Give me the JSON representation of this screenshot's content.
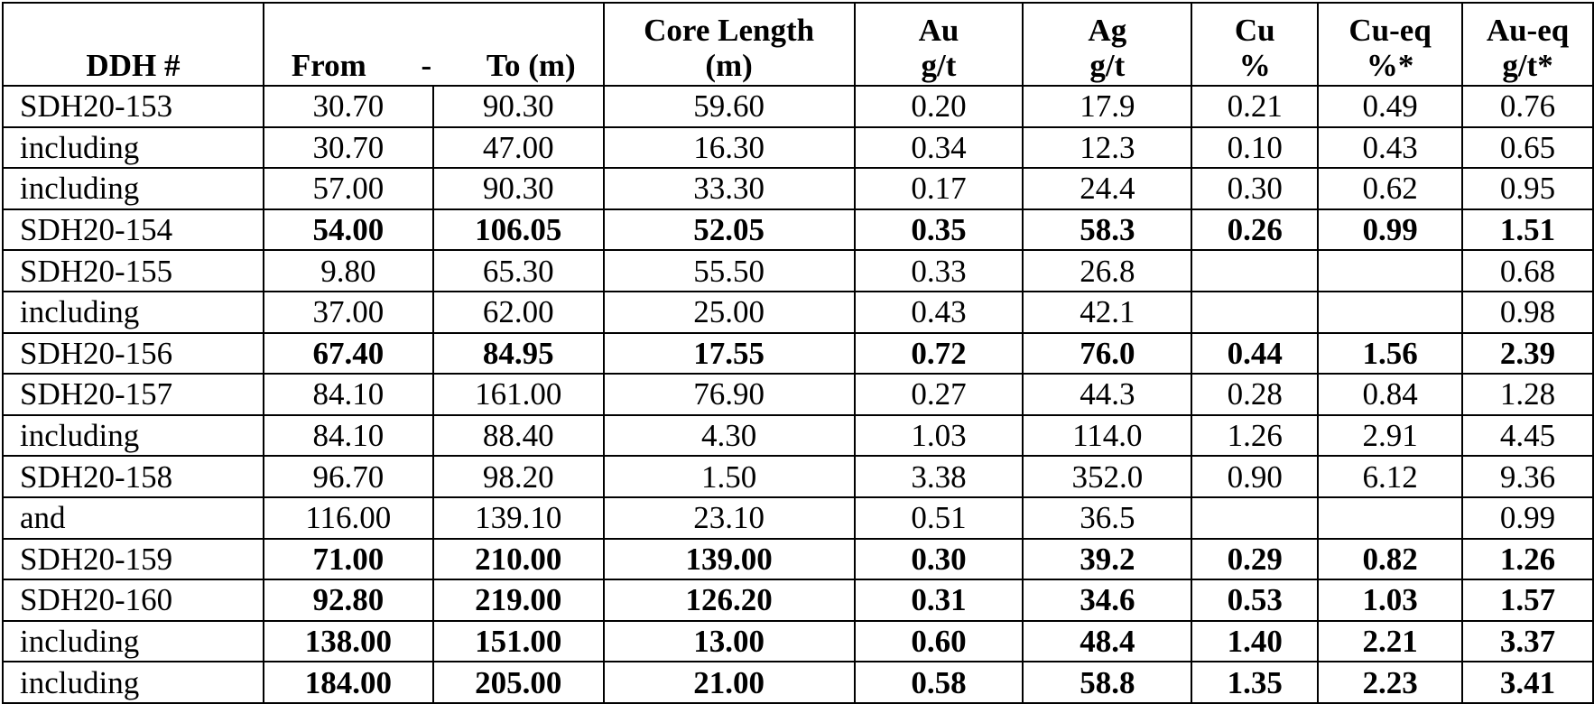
{
  "headers": {
    "ddh": "DDH #",
    "from": "From",
    "dash": "-",
    "to": "To (m)",
    "core_length_line1": "Core Length",
    "core_length_line2": "(m)",
    "au_line1": "Au",
    "au_line2": "g/t",
    "ag_line1": "Ag",
    "ag_line2": "g/t",
    "cu_line1": "Cu",
    "cu_line2": "%",
    "cueq_line1": "Cu-eq",
    "cueq_line2": "%*",
    "aueq_line1": "Au-eq",
    "aueq_line2": "g/t*"
  },
  "rows": [
    {
      "ddh": "SDH20-153",
      "from": "30.70",
      "to": "90.30",
      "core": "59.60",
      "au": "0.20",
      "ag": "17.9",
      "cu": "0.21",
      "cueq": "0.49",
      "aueq": "0.76",
      "bold": false
    },
    {
      "ddh": "including",
      "from": "30.70",
      "to": "47.00",
      "core": "16.30",
      "au": "0.34",
      "ag": "12.3",
      "cu": "0.10",
      "cueq": "0.43",
      "aueq": "0.65",
      "bold": false
    },
    {
      "ddh": "including",
      "from": "57.00",
      "to": "90.30",
      "core": "33.30",
      "au": "0.17",
      "ag": "24.4",
      "cu": "0.30",
      "cueq": "0.62",
      "aueq": "0.95",
      "bold": false
    },
    {
      "ddh": "SDH20-154",
      "from": "54.00",
      "to": "106.05",
      "core": "52.05",
      "au": "0.35",
      "ag": "58.3",
      "cu": "0.26",
      "cueq": "0.99",
      "aueq": "1.51",
      "bold": true
    },
    {
      "ddh": "SDH20-155",
      "from": "9.80",
      "to": "65.30",
      "core": "55.50",
      "au": "0.33",
      "ag": "26.8",
      "cu": "",
      "cueq": "",
      "aueq": "0.68",
      "bold": false
    },
    {
      "ddh": "including",
      "from": "37.00",
      "to": "62.00",
      "core": "25.00",
      "au": "0.43",
      "ag": "42.1",
      "cu": "",
      "cueq": "",
      "aueq": "0.98",
      "bold": false
    },
    {
      "ddh": "SDH20-156",
      "from": "67.40",
      "to": "84.95",
      "core": "17.55",
      "au": "0.72",
      "ag": "76.0",
      "cu": "0.44",
      "cueq": "1.56",
      "aueq": "2.39",
      "bold": true
    },
    {
      "ddh": "SDH20-157",
      "from": "84.10",
      "to": "161.00",
      "core": "76.90",
      "au": "0.27",
      "ag": "44.3",
      "cu": "0.28",
      "cueq": "0.84",
      "aueq": "1.28",
      "bold": false
    },
    {
      "ddh": "including",
      "from": "84.10",
      "to": "88.40",
      "core": "4.30",
      "au": "1.03",
      "ag": "114.0",
      "cu": "1.26",
      "cueq": "2.91",
      "aueq": "4.45",
      "bold": false
    },
    {
      "ddh": "SDH20-158",
      "from": "96.70",
      "to": "98.20",
      "core": "1.50",
      "au": "3.38",
      "ag": "352.0",
      "cu": "0.90",
      "cueq": "6.12",
      "aueq": "9.36",
      "bold": false
    },
    {
      "ddh": "and",
      "from": "116.00",
      "to": "139.10",
      "core": "23.10",
      "au": "0.51",
      "ag": "36.5",
      "cu": "",
      "cueq": "",
      "aueq": "0.99",
      "bold": false
    },
    {
      "ddh": "SDH20-159",
      "from": "71.00",
      "to": "210.00",
      "core": "139.00",
      "au": "0.30",
      "ag": "39.2",
      "cu": "0.29",
      "cueq": "0.82",
      "aueq": "1.26",
      "bold": true
    },
    {
      "ddh": "SDH20-160",
      "from": "92.80",
      "to": "219.00",
      "core": "126.20",
      "au": "0.31",
      "ag": "34.6",
      "cu": "0.53",
      "cueq": "1.03",
      "aueq": "1.57",
      "bold": true
    },
    {
      "ddh": "including",
      "from": "138.00",
      "to": "151.00",
      "core": "13.00",
      "au": "0.60",
      "ag": "48.4",
      "cu": "1.40",
      "cueq": "2.21",
      "aueq": "3.37",
      "bold": true
    },
    {
      "ddh": "including",
      "from": "184.00",
      "to": "205.00",
      "core": "21.00",
      "au": "0.58",
      "ag": "58.8",
      "cu": "1.35",
      "cueq": "2.23",
      "aueq": "3.41",
      "bold": true
    }
  ]
}
